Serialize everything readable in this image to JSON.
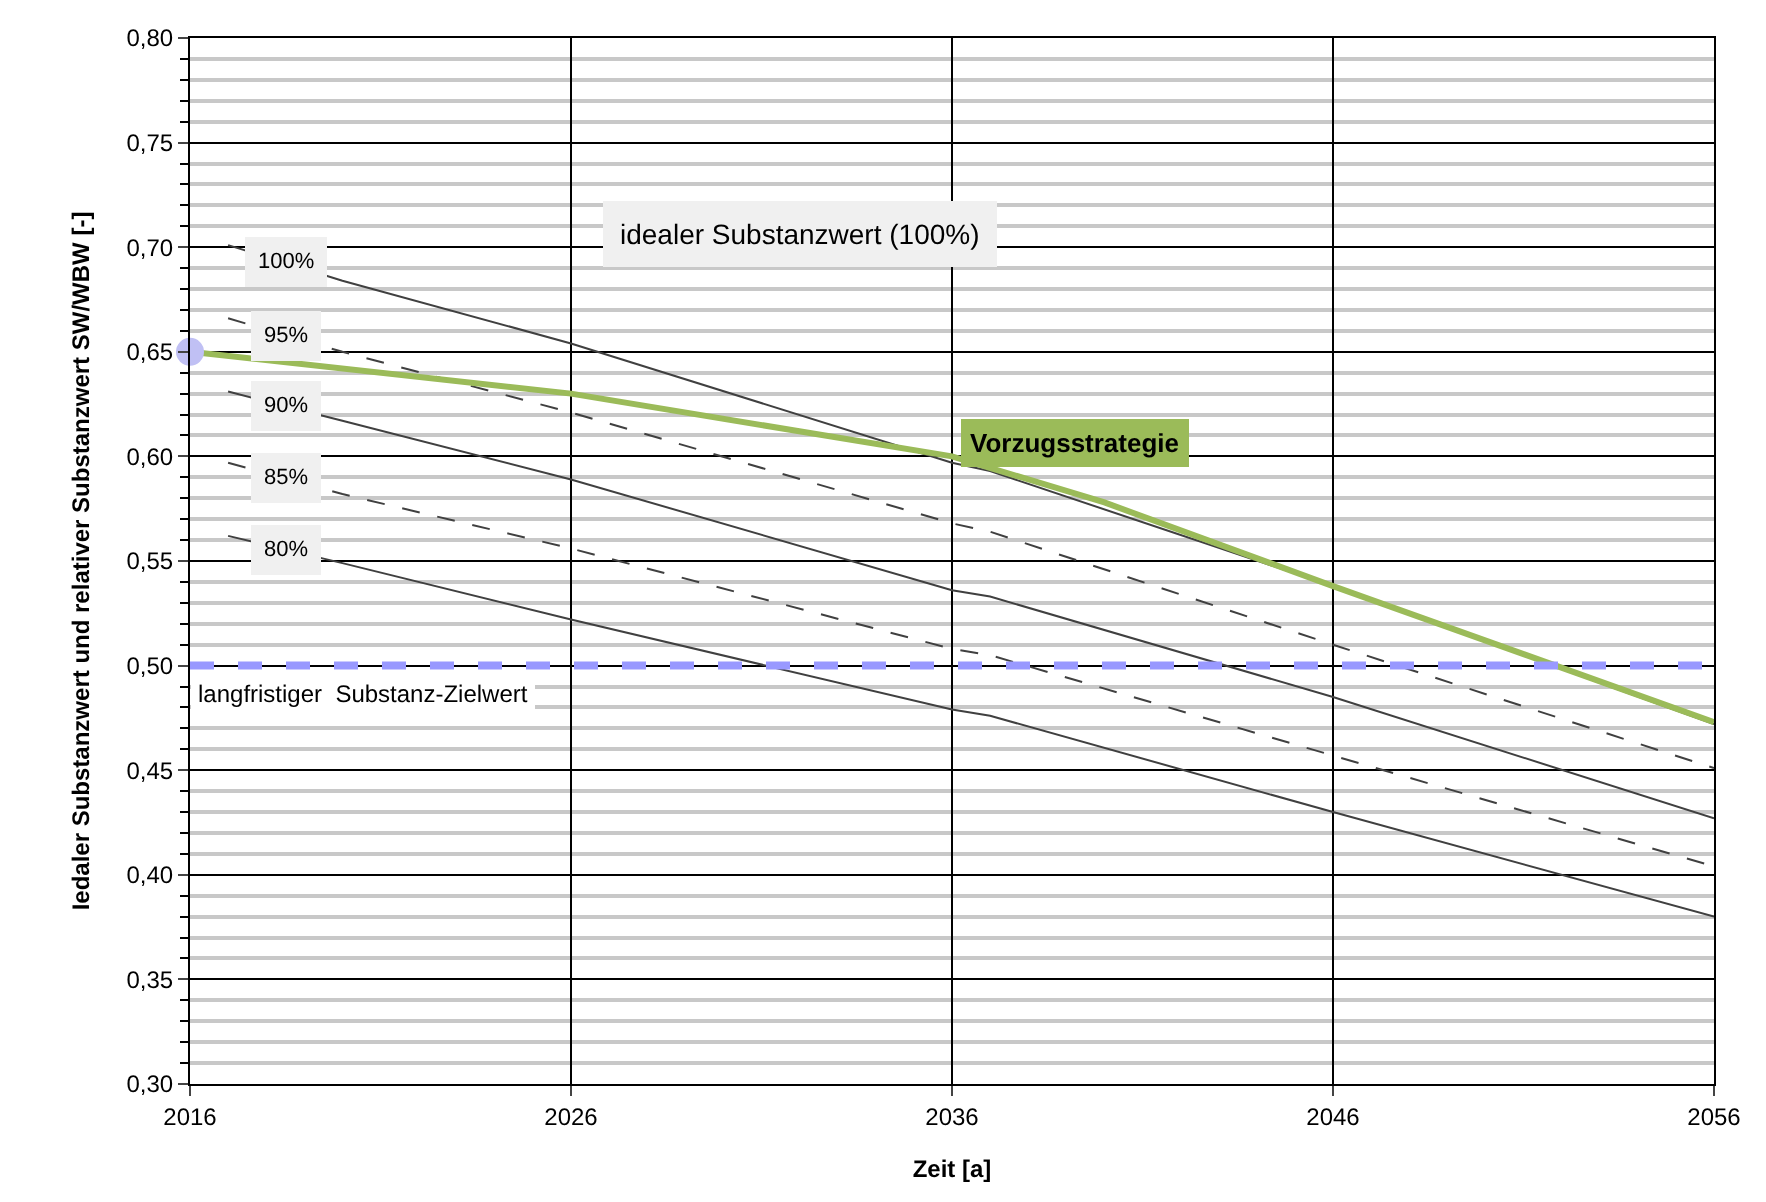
{
  "chart_data": {
    "type": "line",
    "xlabel": "Zeit [a]",
    "ylabel": "Iedaler Substanzwert und relativer Substanzwert SW/WBW [-]",
    "xlim": [
      2016,
      2056
    ],
    "xticks": [
      2016,
      2026,
      2036,
      2046,
      2056
    ],
    "ylim": [
      0.3,
      0.8
    ],
    "yticks": [
      {
        "value": 0.3,
        "label": "0,30"
      },
      {
        "value": 0.31,
        "label": null
      },
      {
        "value": 0.32,
        "label": null
      },
      {
        "value": 0.33,
        "label": null
      },
      {
        "value": 0.34,
        "label": null
      },
      {
        "value": 0.35,
        "label": "0,35"
      },
      {
        "value": 0.36,
        "label": null
      },
      {
        "value": 0.37,
        "label": null
      },
      {
        "value": 0.38,
        "label": null
      },
      {
        "value": 0.39,
        "label": null
      },
      {
        "value": 0.4,
        "label": "0,40"
      },
      {
        "value": 0.41,
        "label": null
      },
      {
        "value": 0.42,
        "label": null
      },
      {
        "value": 0.43,
        "label": null
      },
      {
        "value": 0.44,
        "label": null
      },
      {
        "value": 0.45,
        "label": "0,45"
      },
      {
        "value": 0.46,
        "label": null
      },
      {
        "value": 0.47,
        "label": null
      },
      {
        "value": 0.48,
        "label": null
      },
      {
        "value": 0.49,
        "label": null
      },
      {
        "value": 0.5,
        "label": "0,50"
      },
      {
        "value": 0.51,
        "label": null
      },
      {
        "value": 0.52,
        "label": null
      },
      {
        "value": 0.53,
        "label": null
      },
      {
        "value": 0.54,
        "label": null
      },
      {
        "value": 0.55,
        "label": "0,55"
      },
      {
        "value": 0.56,
        "label": null
      },
      {
        "value": 0.57,
        "label": null
      },
      {
        "value": 0.58,
        "label": null
      },
      {
        "value": 0.59,
        "label": null
      },
      {
        "value": 0.6,
        "label": "0,60"
      },
      {
        "value": 0.61,
        "label": null
      },
      {
        "value": 0.62,
        "label": null
      },
      {
        "value": 0.63,
        "label": null
      },
      {
        "value": 0.64,
        "label": null
      },
      {
        "value": 0.65,
        "label": "0,65"
      },
      {
        "value": 0.66,
        "label": null
      },
      {
        "value": 0.67,
        "label": null
      },
      {
        "value": 0.68,
        "label": null
      },
      {
        "value": 0.69,
        "label": null
      },
      {
        "value": 0.7,
        "label": "0,70"
      },
      {
        "value": 0.71,
        "label": null
      },
      {
        "value": 0.72,
        "label": null
      },
      {
        "value": 0.73,
        "label": null
      },
      {
        "value": 0.74,
        "label": null
      },
      {
        "value": 0.75,
        "label": "0,75"
      },
      {
        "value": 0.76,
        "label": null
      },
      {
        "value": 0.77,
        "label": null
      },
      {
        "value": 0.78,
        "label": null
      },
      {
        "value": 0.79,
        "label": null
      },
      {
        "value": 0.8,
        "label": "0,80"
      }
    ],
    "grid": true,
    "legend": false,
    "marker": "none",
    "series": [
      {
        "name": "100%",
        "color": "#404040",
        "line_style": "solid",
        "x": [
          2017,
          2020,
          2026,
          2036,
          2037,
          2046,
          2056
        ],
        "values": [
          0.701,
          0.684,
          0.654,
          0.597,
          0.593,
          0.538,
          0.472
        ]
      },
      {
        "name": "95%",
        "color": "#404040",
        "line_style": "dashed",
        "x": [
          2017,
          2020,
          2026,
          2036,
          2037,
          2046,
          2056
        ],
        "values": [
          0.666,
          0.65,
          0.621,
          0.568,
          0.564,
          0.51,
          0.451
        ]
      },
      {
        "name": "90%",
        "color": "#404040",
        "line_style": "solid",
        "x": [
          2017,
          2020,
          2026,
          2036,
          2037,
          2046,
          2056
        ],
        "values": [
          0.631,
          0.617,
          0.589,
          0.536,
          0.533,
          0.485,
          0.427
        ]
      },
      {
        "name": "85%",
        "color": "#404040",
        "line_style": "dashed",
        "x": [
          2017,
          2020,
          2026,
          2036,
          2037,
          2046,
          2056
        ],
        "values": [
          0.597,
          0.582,
          0.556,
          0.508,
          0.505,
          0.457,
          0.404
        ]
      },
      {
        "name": "80%",
        "color": "#404040",
        "line_style": "solid",
        "x": [
          2017,
          2020,
          2026,
          2036,
          2037,
          2046,
          2056
        ],
        "values": [
          0.562,
          0.549,
          0.522,
          0.479,
          0.476,
          0.43,
          0.38
        ]
      },
      {
        "name": "Vorzugsstrategie",
        "color": "#9bbb59",
        "line_style": "solid",
        "x": [
          2016,
          2026,
          2036,
          2040,
          2046,
          2056
        ],
        "values": [
          0.65,
          0.63,
          0.6,
          0.578,
          0.538,
          0.473
        ]
      },
      {
        "type": "scatter",
        "marker": "circle",
        "color": "#c0c0f4",
        "x": [
          2016
        ],
        "values": [
          0.65
        ]
      }
    ],
    "ref_lines": [
      {
        "axis": "y",
        "value": 0.5,
        "label": "langfristiger  Substanz-Zielwert",
        "color": "#9999ff",
        "line_style": "dashed"
      }
    ],
    "annotations": [
      "idealer Substanzwert (100%)"
    ]
  }
}
